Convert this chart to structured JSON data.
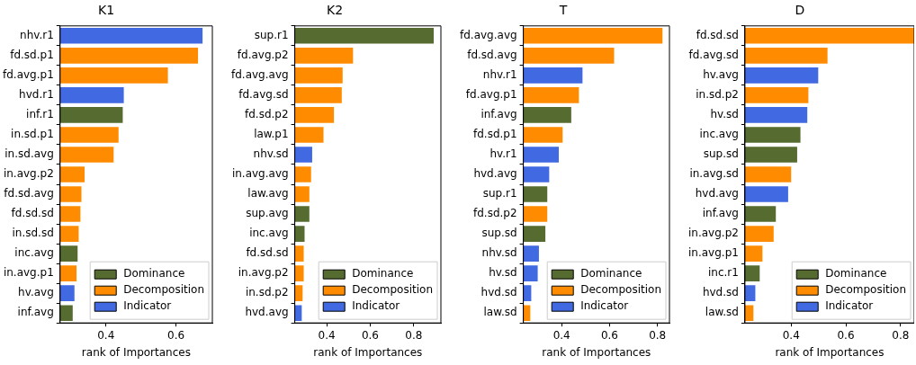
{
  "chart_data": [
    {
      "type": "bar",
      "orientation": "horizontal",
      "title": "K1",
      "xlabel": "rank of Importances",
      "legend": "bottom right",
      "xlim": [
        0.269,
        0.704
      ],
      "xticks": [
        0.4,
        0.6
      ],
      "categories": [
        "nhv.r1",
        "fd.sd.p1",
        "fd.avg.p1",
        "hvd.r1",
        "inf.r1",
        "in.sd.p1",
        "in.sd.avg",
        "in.avg.p2",
        "fd.sd.avg",
        "fd.sd.sd",
        "in.sd.sd",
        "inc.avg",
        "in.avg.p1",
        "hv.avg",
        "inf.avg"
      ],
      "series": [
        {
          "name": "Dominance",
          "color": "#556b2f",
          "values": [
            null,
            null,
            null,
            null,
            0.448,
            null,
            null,
            null,
            null,
            null,
            null,
            0.319,
            null,
            null,
            0.305
          ]
        },
        {
          "name": "Decomposition",
          "color": "#ff8c00",
          "values": [
            null,
            0.663,
            0.577,
            null,
            null,
            0.436,
            0.422,
            0.339,
            0.33,
            0.327,
            0.322,
            null,
            0.316,
            null,
            null
          ]
        },
        {
          "name": "Indicator",
          "color": "#4169e1",
          "values": [
            0.676,
            null,
            null,
            0.451,
            null,
            null,
            null,
            null,
            null,
            null,
            null,
            null,
            null,
            0.31,
            null
          ]
        }
      ]
    },
    {
      "type": "bar",
      "orientation": "horizontal",
      "title": "K2",
      "xlabel": "rank of Importances",
      "legend": "bottom right",
      "xlim": [
        0.253,
        0.925
      ],
      "xticks": [
        0.4,
        0.6,
        0.8
      ],
      "categories": [
        "sup.r1",
        "fd.avg.p2",
        "fd.avg.avg",
        "fd.avg.sd",
        "fd.sd.p2",
        "law.p1",
        "nhv.sd",
        "in.avg.avg",
        "law.avg",
        "sup.avg",
        "inc.avg",
        "fd.sd.sd",
        "in.avg.p2",
        "in.sd.p2",
        "hvd.avg"
      ],
      "series": [
        {
          "name": "Dominance",
          "color": "#556b2f",
          "values": [
            0.892,
            null,
            null,
            null,
            null,
            null,
            null,
            null,
            null,
            0.32,
            0.298,
            null,
            null,
            null,
            null
          ]
        },
        {
          "name": "Decomposition",
          "color": "#ff8c00",
          "values": [
            null,
            0.521,
            0.473,
            0.469,
            0.433,
            0.385,
            null,
            0.328,
            0.32,
            null,
            null,
            0.294,
            0.294,
            0.289,
            null
          ]
        },
        {
          "name": "Indicator",
          "color": "#4169e1",
          "values": [
            null,
            null,
            null,
            null,
            null,
            null,
            0.333,
            null,
            null,
            null,
            null,
            null,
            null,
            null,
            0.285
          ]
        }
      ]
    },
    {
      "type": "bar",
      "orientation": "horizontal",
      "title": "T",
      "xlabel": "rank of Importances",
      "legend": "bottom right",
      "xlim": [
        0.24,
        0.85
      ],
      "xticks": [
        0.4,
        0.6,
        0.8
      ],
      "categories": [
        "fd.avg.avg",
        "fd.sd.avg",
        "nhv.r1",
        "fd.avg.p1",
        "inf.avg",
        "fd.sd.p1",
        "hv.r1",
        "hvd.avg",
        "sup.r1",
        "fd.sd.p2",
        "sup.sd",
        "nhv.sd",
        "hv.sd",
        "hvd.sd",
        "law.sd"
      ],
      "series": [
        {
          "name": "Dominance",
          "color": "#556b2f",
          "values": [
            null,
            null,
            null,
            null,
            0.44,
            null,
            null,
            null,
            0.34,
            null,
            0.332,
            null,
            null,
            null,
            null
          ]
        },
        {
          "name": "Decomposition",
          "color": "#ff8c00",
          "values": [
            0.821,
            0.619,
            null,
            0.472,
            null,
            0.404,
            null,
            null,
            null,
            0.34,
            null,
            null,
            null,
            null,
            0.269
          ]
        },
        {
          "name": "Indicator",
          "color": "#4169e1",
          "values": [
            null,
            null,
            0.487,
            null,
            null,
            null,
            0.388,
            0.348,
            null,
            null,
            null,
            0.305,
            0.3,
            0.273,
            null
          ]
        }
      ]
    },
    {
      "type": "bar",
      "orientation": "horizontal",
      "title": "D",
      "xlabel": "rank of Importances",
      "legend": "bottom right",
      "xlim": [
        0.231,
        0.85
      ],
      "xticks": [
        0.4,
        0.6,
        0.8
      ],
      "categories": [
        "fd.sd.sd",
        "fd.avg.sd",
        "hv.avg",
        "in.sd.p2",
        "hv.sd",
        "inc.avg",
        "sup.sd",
        "in.avg.sd",
        "hvd.avg",
        "inf.avg",
        "in.avg.p2",
        "in.avg.p1",
        "inc.r1",
        "hvd.sd",
        "law.sd"
      ],
      "series": [
        {
          "name": "Dominance",
          "color": "#556b2f",
          "values": [
            null,
            null,
            null,
            null,
            null,
            0.434,
            0.422,
            null,
            null,
            0.344,
            null,
            null,
            0.285,
            null,
            null
          ]
        },
        {
          "name": "Decomposition",
          "color": "#ff8c00",
          "values": [
            0.85,
            0.533,
            null,
            0.463,
            null,
            null,
            null,
            0.4,
            null,
            null,
            0.336,
            0.295,
            null,
            null,
            0.262
          ]
        },
        {
          "name": "Indicator",
          "color": "#4169e1",
          "values": [
            null,
            null,
            0.499,
            null,
            0.459,
            null,
            null,
            null,
            0.389,
            null,
            null,
            null,
            null,
            0.269,
            null
          ]
        }
      ]
    }
  ]
}
